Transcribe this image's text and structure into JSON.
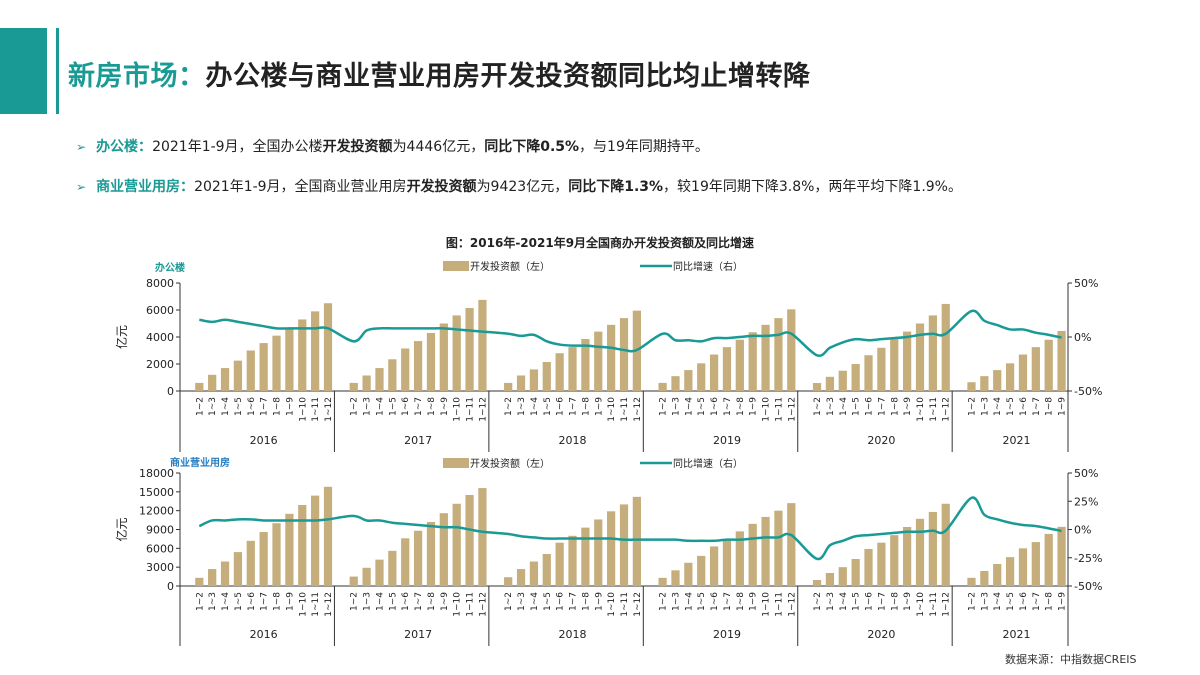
{
  "header": {
    "title_highlight": "新房市场：",
    "title_rest": "办公楼与商业营业用房开发投资额同比均止增转降"
  },
  "bullets": [
    {
      "arrow": "➢",
      "key": "办公楼：",
      "t1": "2021年1-9月，全国办公楼",
      "b1": "开发投资额",
      "t2": "为4446亿元，",
      "b2": "同比下降0.5%",
      "t3": "，与19年同期持平。"
    },
    {
      "arrow": "➢",
      "key": "商业营业用房：",
      "t1": "2021年1-9月，全国商业营业用房",
      "b1": "开发投资额",
      "t2": "为9423亿元，",
      "b2": "同比下降1.3%",
      "t3": "，较19年同期下降3.8%，两年平均下降1.9%。"
    }
  ],
  "source": "数据来源：中指数据CREIS",
  "colors": {
    "accent": "#1a9a94",
    "bar": "#c5ae7c",
    "line": "#1a9a94",
    "commercial_label": "#2a7fc1"
  },
  "chart_data": [
    {
      "type": "bar+line",
      "title": "图：2016年-2021年9月全国商办开发投资额及同比增速",
      "panel_label": "办公楼",
      "ylabel": "亿元",
      "legend": [
        "开发投资额（左）",
        "同比增速（右）"
      ],
      "legend_placement": "top-center",
      "ylim_left": [
        0,
        8000
      ],
      "yticks_left": [
        "0",
        "2000",
        "4000",
        "6000",
        "8000"
      ],
      "ylim_right": [
        -50,
        50
      ],
      "yticks_right": [
        "-50%",
        "0%",
        "50%"
      ],
      "years": [
        "2016",
        "2017",
        "2018",
        "2019",
        "2020",
        "2021"
      ],
      "months": [
        [
          "1~2",
          "1~3",
          "1~4",
          "1~5",
          "1~6",
          "1~7",
          "1~8",
          "1~9",
          "1~10",
          "1~11",
          "1~12"
        ],
        [
          "1~2",
          "1~3",
          "1~4",
          "1~5",
          "1~6",
          "1~7",
          "1~8",
          "1~9",
          "1~10",
          "1~11",
          "1~12"
        ],
        [
          "1~2",
          "1~3",
          "1~4",
          "1~5",
          "1~6",
          "1~7",
          "1~8",
          "1~9",
          "1~10",
          "1~11",
          "1~12"
        ],
        [
          "1~2",
          "1~3",
          "1~4",
          "1~5",
          "1~6",
          "1~7",
          "1~8",
          "1~9",
          "1~10",
          "1~11",
          "1~12"
        ],
        [
          "1~2",
          "1~3",
          "1~4",
          "1~5",
          "1~6",
          "1~7",
          "1~8",
          "1~9",
          "1~10",
          "1~11",
          "1~12"
        ],
        [
          "1~2",
          "1~3",
          "1~4",
          "1~5",
          "1~6",
          "1~7",
          "1~8",
          "1~9"
        ]
      ],
      "investment": [
        [
          600,
          1200,
          1700,
          2250,
          3000,
          3550,
          4100,
          4700,
          5300,
          5900,
          6500
        ],
        [
          600,
          1150,
          1700,
          2350,
          3150,
          3700,
          4300,
          5000,
          5600,
          6150,
          6750
        ],
        [
          600,
          1150,
          1600,
          2150,
          2800,
          3250,
          3850,
          4400,
          4900,
          5400,
          5950
        ],
        [
          600,
          1100,
          1550,
          2050,
          2700,
          3250,
          3800,
          4350,
          4900,
          5400,
          6050
        ],
        [
          590,
          1050,
          1500,
          2000,
          2650,
          3200,
          3850,
          4400,
          5000,
          5600,
          6450
        ],
        [
          650,
          1100,
          1550,
          2050,
          2700,
          3250,
          3800,
          4446
        ]
      ],
      "growth": [
        [
          16,
          14,
          16,
          14,
          12,
          10,
          8,
          8,
          8,
          8,
          8
        ],
        [
          -4,
          6,
          8,
          8,
          8,
          8,
          8,
          8,
          7,
          6,
          5
        ],
        [
          3,
          1,
          2,
          -4,
          -7,
          -8,
          -8,
          -9,
          -10,
          -12,
          -12
        ],
        [
          3,
          -3,
          -3,
          -4,
          -1,
          -1,
          0,
          1,
          1,
          2,
          3
        ],
        [
          -17,
          -10,
          -5,
          -2,
          -3,
          -2,
          -1,
          0,
          2,
          3,
          3
        ],
        [
          24,
          15,
          11,
          7,
          7,
          4,
          2,
          -0.5
        ]
      ]
    },
    {
      "type": "bar+line",
      "panel_label": "商业营业用房",
      "ylabel": "亿元",
      "legend": [
        "开发投资额（左）",
        "同比增速（右）"
      ],
      "legend_placement": "top-center",
      "ylim_left": [
        0,
        18000
      ],
      "yticks_left": [
        "0",
        "3000",
        "6000",
        "9000",
        "12000",
        "15000",
        "18000"
      ],
      "ylim_right": [
        -50,
        50
      ],
      "yticks_right": [
        "-50%",
        "-25%",
        "0%",
        "25%",
        "50%"
      ],
      "years": [
        "2016",
        "2017",
        "2018",
        "2019",
        "2020",
        "2021"
      ],
      "months": [
        [
          "1~2",
          "1~3",
          "1~4",
          "1~5",
          "1~6",
          "1~7",
          "1~8",
          "1~9",
          "1~10",
          "1~11",
          "1~12"
        ],
        [
          "1~2",
          "1~3",
          "1~4",
          "1~5",
          "1~6",
          "1~7",
          "1~8",
          "1~9",
          "1~10",
          "1~11",
          "1~12"
        ],
        [
          "1~2",
          "1~3",
          "1~4",
          "1~5",
          "1~6",
          "1~7",
          "1~8",
          "1~9",
          "1~10",
          "1~11",
          "1~12"
        ],
        [
          "1~2",
          "1~3",
          "1~4",
          "1~5",
          "1~6",
          "1~7",
          "1~8",
          "1~9",
          "1~10",
          "1~11",
          "1~12"
        ],
        [
          "1~2",
          "1~3",
          "1~4",
          "1~5",
          "1~6",
          "1~7",
          "1~8",
          "1~9",
          "1~10",
          "1~11",
          "1~12"
        ],
        [
          "1~2",
          "1~3",
          "1~4",
          "1~5",
          "1~6",
          "1~7",
          "1~8",
          "1~9"
        ]
      ],
      "investment": [
        [
          1300,
          2700,
          3900,
          5400,
          7200,
          8600,
          10000,
          11500,
          12900,
          14400,
          15800
        ],
        [
          1500,
          2900,
          4200,
          5600,
          7600,
          8800,
          10200,
          11600,
          13100,
          14500,
          15600
        ],
        [
          1400,
          2700,
          3900,
          5100,
          6900,
          8000,
          9300,
          10600,
          11900,
          13000,
          14200
        ],
        [
          1300,
          2500,
          3700,
          4800,
          6300,
          7500,
          8700,
          9900,
          11000,
          12000,
          13200
        ],
        [
          950,
          2070,
          3000,
          4300,
          5900,
          6900,
          8100,
          9400,
          10700,
          11800,
          13100
        ],
        [
          1300,
          2400,
          3500,
          4600,
          6000,
          7000,
          8300,
          9423
        ]
      ],
      "growth": [
        [
          3,
          8,
          8,
          9,
          9,
          8,
          8,
          8,
          8,
          8,
          9
        ],
        [
          12,
          8,
          8,
          6,
          5,
          4,
          3,
          2,
          2,
          0,
          -2
        ],
        [
          -4,
          -6,
          -7,
          -8,
          -8,
          -8,
          -8,
          -8,
          -8,
          -9,
          -9
        ],
        [
          -9,
          -9,
          -10,
          -10,
          -10,
          -9,
          -9,
          -8,
          -7,
          -7,
          -5
        ],
        [
          -26,
          -14,
          -10,
          -6,
          -5,
          -4,
          -3,
          -2,
          -2,
          -1,
          -1
        ],
        [
          28,
          13,
          9,
          6,
          4,
          3,
          1,
          -1.3
        ]
      ]
    }
  ]
}
